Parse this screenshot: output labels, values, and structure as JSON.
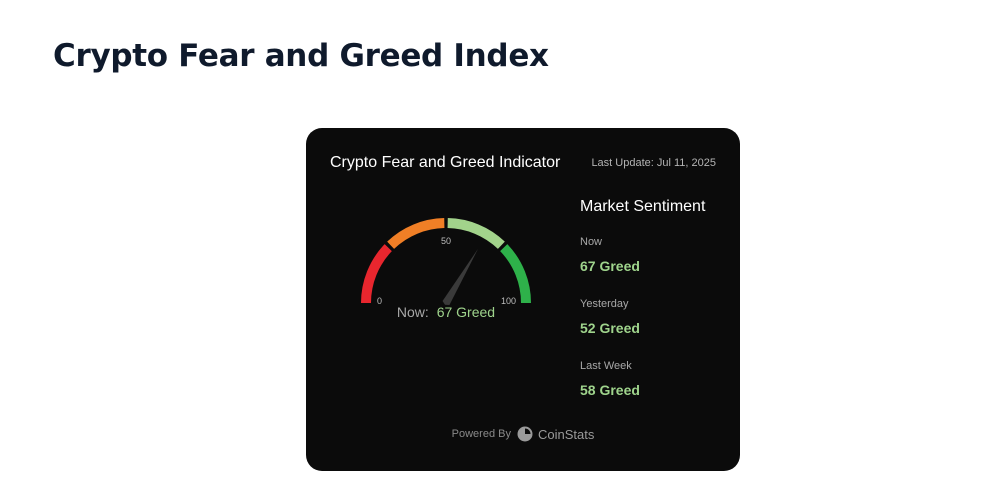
{
  "page": {
    "title": "Crypto Fear and Greed Index"
  },
  "widget": {
    "title": "Crypto Fear and Greed Indicator",
    "last_update": "Last Update: Jul 11, 2025",
    "gauge": {
      "value": 67,
      "min_label": "0",
      "mid_label": "50",
      "max_label": "100",
      "now_prefix": "Now:",
      "now_value": "67 Greed",
      "colors": {
        "fear": "#e8262e",
        "neutral": "#f07f26",
        "greed": "#a2d38b",
        "extreme_greed": "#2eb14a"
      }
    },
    "sentiment": {
      "heading": "Market Sentiment",
      "items": [
        {
          "label": "Now",
          "value": "67 Greed"
        },
        {
          "label": "Yesterday",
          "value": "52 Greed"
        },
        {
          "label": "Last Week",
          "value": "58 Greed"
        }
      ]
    },
    "footer": {
      "powered_by": "Powered By",
      "brand": "CoinStats"
    }
  }
}
